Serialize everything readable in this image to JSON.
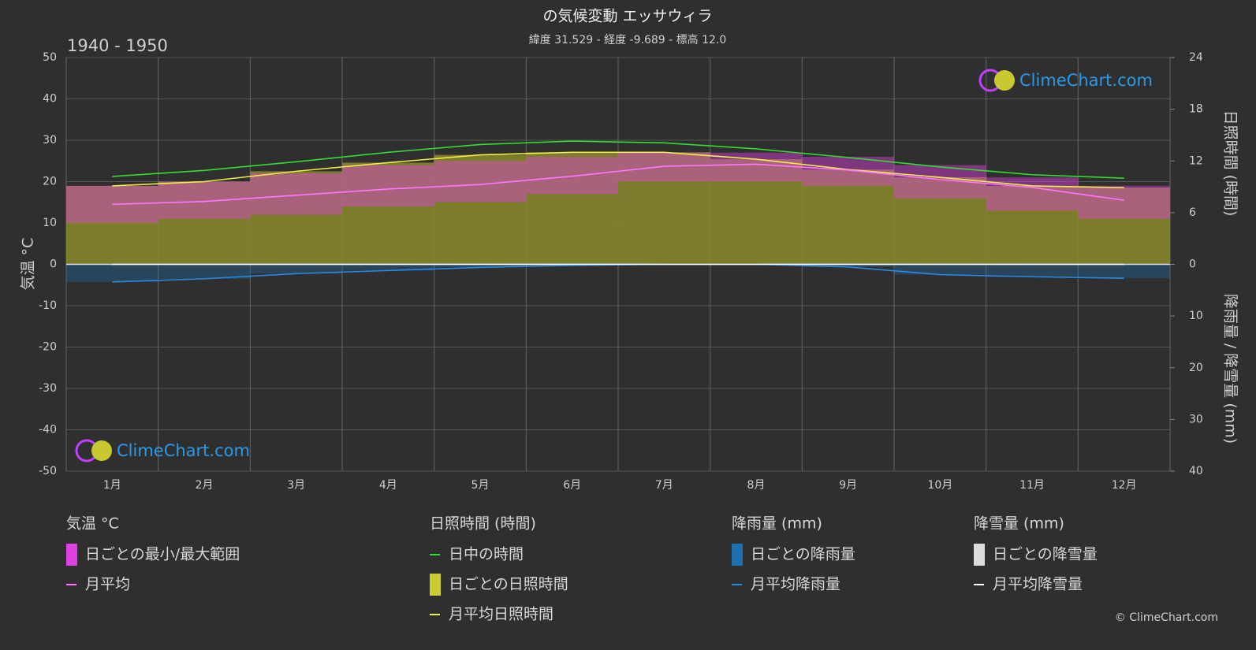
{
  "chart_data": {
    "type": "climate",
    "title": "の気候変動 エッサウィラ",
    "subtitle": "緯度 31.529 - 経度 -9.689 - 標高 12.0",
    "period": "1940 - 1950",
    "ylabel": "気温 °C",
    "y2label": "日照時間 (時間)",
    "y3label": "降雨量 / 降雪量 (mm)",
    "legend_titles": [
      "降雨量 (mm)",
      "降雪量 (mm)"
    ],
    "watermark": "ClimeChart.com",
    "copyright": "© ClimeChart.com",
    "categories": [
      "1月",
      "2月",
      "3月",
      "4月",
      "5月",
      "6月",
      "7月",
      "8月",
      "9月",
      "10月",
      "11月",
      "12月"
    ],
    "ylim": [
      -50,
      50
    ],
    "yticks": [
      -50,
      -40,
      -30,
      -20,
      -10,
      0,
      10,
      20,
      30,
      40,
      50
    ],
    "y2lim": [
      0,
      24
    ],
    "y2ticks": [
      0,
      6,
      12,
      18,
      24
    ],
    "y3lim": [
      0,
      40
    ],
    "y3ticks": [
      0,
      10,
      20,
      30,
      40
    ],
    "grid": true,
    "temp_range": {
      "name": "日ごとの最小/最大範囲",
      "color": "#e040e0",
      "min": [
        10,
        11,
        12,
        14,
        15,
        17,
        20,
        20,
        19,
        16,
        13,
        11
      ],
      "max": [
        19,
        20,
        22,
        24,
        25,
        26,
        27,
        27,
        26,
        24,
        21,
        19
      ]
    },
    "sunshine_daily": {
      "name": "日ごとの日照時間",
      "color": "#8a8a2a"
    },
    "rain_daily": {
      "name": "日ごとの降雨量",
      "color": "#1e6fb0"
    },
    "snow_daily": {
      "name": "日ごとの降雪量",
      "color": "#dddddd"
    },
    "series": [
      {
        "name": "日中の時間",
        "color": "#33dd33",
        "axis": "y2",
        "values": [
          10.2,
          10.9,
          11.9,
          13.0,
          13.9,
          14.3,
          14.1,
          13.4,
          12.4,
          11.3,
          10.4,
          10.0
        ]
      },
      {
        "name": "月平均日照時間",
        "color": "#eeee44",
        "axis": "y2",
        "values": [
          9.1,
          9.6,
          10.8,
          11.8,
          12.7,
          13.0,
          13.0,
          12.2,
          11.0,
          10.1,
          9.1,
          8.9
        ]
      },
      {
        "name": "月平均",
        "color": "#ff77ff",
        "axis": "y",
        "values": [
          14.5,
          15.2,
          16.7,
          18.2,
          19.3,
          21.3,
          23.7,
          24.2,
          22.8,
          20.5,
          18.6,
          15.5
        ]
      },
      {
        "name": "月平均降雨量",
        "color": "#2a8ae0",
        "axis": "y3",
        "values": [
          3.4,
          2.8,
          1.8,
          1.2,
          0.6,
          0.2,
          0,
          0,
          0.5,
          2.0,
          2.4,
          2.7
        ]
      },
      {
        "name": "月平均降雪量",
        "color": "#ffffff",
        "axis": "y3",
        "values": [
          0,
          0,
          0,
          0,
          0,
          0,
          0,
          0,
          0,
          0,
          0,
          0
        ]
      }
    ]
  }
}
